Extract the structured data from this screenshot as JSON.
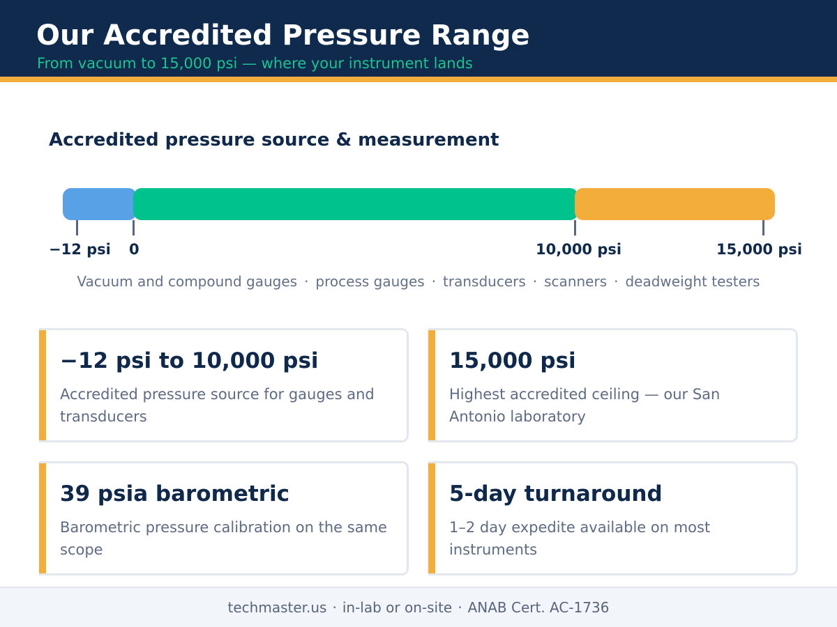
{
  "header": {
    "title": "Our Accredited Pressure Range",
    "subtitle": "From vacuum to 15,000 psi — where your instrument lands"
  },
  "range_chart": {
    "title": "Accredited pressure source & measurement",
    "scale_endpoints_psi": [
      -12,
      15000
    ],
    "segments": [
      {
        "from": "−12 psi",
        "to": "0",
        "color": "#58a1e6"
      },
      {
        "from": "0",
        "to": "10,000 psi",
        "color": "#00c28c"
      },
      {
        "from": "10,000 psi",
        "to": "15,000 psi",
        "color": "#f2ad3a"
      }
    ],
    "tick_labels": [
      "−12 psi",
      "0",
      "10,000 psi",
      "15,000 psi"
    ],
    "instruments": [
      "Vacuum and compound gauges",
      "process gauges",
      "transducers",
      "scanners",
      "deadweight testers"
    ],
    "separator": "·"
  },
  "cards": [
    {
      "title": "−12 psi to 10,000 psi",
      "description": "Accredited pressure source for gauges and transducers"
    },
    {
      "title": "15,000 psi",
      "description": "Highest accredited ceiling — our San Antonio laboratory"
    },
    {
      "title": "39 psia barometric",
      "description": "Barometric pressure calibration on the same scope"
    },
    {
      "title": "5-day turnaround",
      "description": "1–2 day expedite available on most instruments"
    }
  ],
  "footer": {
    "site": "techmaster.us",
    "service": "in-lab or on-site",
    "certification": "ANAB Cert. AC-1736",
    "separator": "·"
  },
  "colors": {
    "navy": "#0f2a4c",
    "accent_orange": "#f2ad3a",
    "accent_green": "#1dc48f",
    "vacuum_blue": "#58a1e6",
    "range_green": "#00c28c"
  }
}
